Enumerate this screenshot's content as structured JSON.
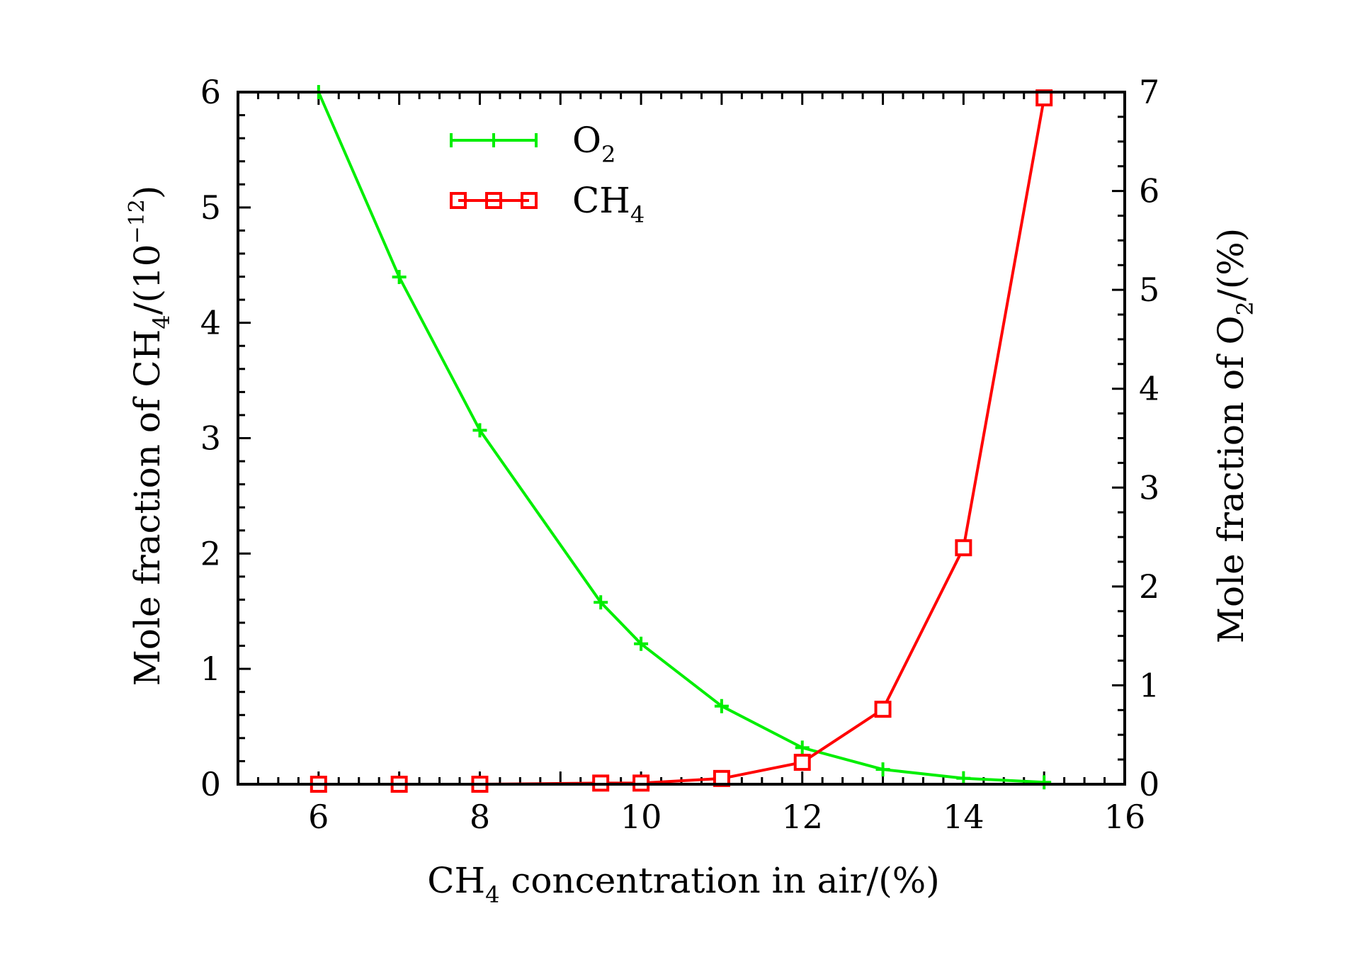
{
  "chart_data": {
    "type": "line",
    "xlabel": {
      "pre": "CH",
      "sub": "4",
      "post": " concentration in air/(%)"
    },
    "ylabel_left": {
      "pre": "Mole fraction of CH",
      "sub": "4",
      "mid": "/(10",
      "sup": "−12",
      "post": ")"
    },
    "ylabel_right": {
      "pre": "Mole fraction of O",
      "sub": "2",
      "post": "/(%)"
    },
    "xlim": [
      5,
      16
    ],
    "xticks": [
      6,
      8,
      10,
      12,
      14,
      16
    ],
    "ylim_left": [
      0,
      6
    ],
    "yticks_left": [
      0,
      1,
      2,
      3,
      4,
      5,
      6
    ],
    "ylim_right": [
      0,
      7
    ],
    "yticks_right": [
      0,
      1,
      2,
      3,
      4,
      5,
      6,
      7
    ],
    "grid": false,
    "legend_position": "top-left",
    "series": [
      {
        "name": "O",
        "name_sub": "2",
        "axis": "right",
        "color": "#00ee00",
        "marker": "plus",
        "x": [
          6,
          7,
          8,
          9.5,
          10,
          11,
          12,
          13,
          14,
          15
        ],
        "y": [
          7.0,
          5.13,
          3.58,
          1.84,
          1.42,
          0.79,
          0.37,
          0.15,
          0.06,
          0.02
        ]
      },
      {
        "name": "CH",
        "name_sub": "4",
        "axis": "left",
        "color": "#ff0000",
        "marker": "square",
        "x": [
          6,
          7,
          8,
          9.5,
          10,
          11,
          12,
          13,
          14,
          15
        ],
        "y": [
          0.0,
          0.0,
          0.0,
          0.01,
          0.01,
          0.05,
          0.19,
          0.65,
          2.05,
          5.95
        ]
      }
    ]
  }
}
